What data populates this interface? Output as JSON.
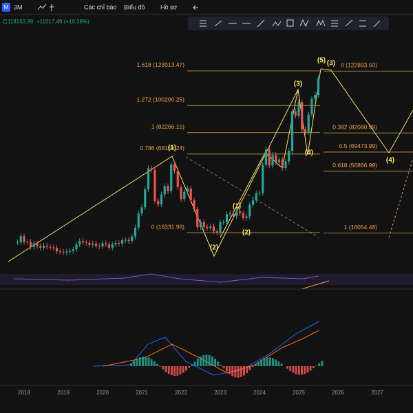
{
  "toolbar": {
    "symbol_badge": "M",
    "interval": "3M",
    "indicators": "Các chỉ báo",
    "chart_type": "Biểu đồ",
    "profile": "Hồ sơ"
  },
  "legend": {
    "prefix": "C",
    "close": "118163.99",
    "change": "+11017.49 (+10.28%)"
  },
  "chart_data": {
    "type": "candlestick",
    "ylim": [
      -11811,
      156140
    ],
    "up_color": "#26a69a",
    "down_color": "#ef5350",
    "closes": [
      10000,
      14000,
      10100,
      10300,
      7000,
      9200,
      7500,
      6400,
      7700,
      7000,
      6600,
      6300,
      4000,
      3700,
      3400,
      3800,
      4100,
      5300,
      8600,
      10800,
      10000,
      9600,
      8300,
      9200,
      7600,
      7200,
      9300,
      8600,
      6400,
      8600,
      9500,
      9100,
      11300,
      11600,
      10800,
      13800,
      19700,
      29000,
      33000,
      45000,
      58800,
      57700,
      37300,
      35000,
      41500,
      47000,
      43800,
      61300,
      57000,
      46300,
      38500,
      43200,
      45500,
      37700,
      31800,
      19900,
      23300,
      20000,
      19400,
      20500,
      17200,
      16500,
      23100,
      23100,
      28500,
      29200,
      27200,
      30500,
      29200,
      26000,
      27000,
      34600,
      37700,
      42300,
      42500,
      61100,
      71300,
      60600,
      67500,
      62700,
      64600,
      59000,
      63300,
      70200,
      96400,
      93400,
      102400,
      84400,
      82500,
      94200,
      104600,
      107100,
      118200
    ],
    "years": [
      "2018",
      "2019",
      "2020",
      "2021",
      "2022",
      "2023",
      "2024",
      "2025",
      "2026",
      "2027"
    ],
    "fib_left": [
      {
        "label": "1.618 (123013.47)",
        "value": 123013.47
      },
      {
        "label": "1.272 (100200.25)",
        "value": 100200.25
      },
      {
        "label": "1 (82266.15)",
        "value": 82266.15
      },
      {
        "label": "0.786 (68156.24)",
        "value": 68156.24
      },
      {
        "label": "0 (16331.98)",
        "value": 16331.98
      }
    ],
    "fib_right": [
      {
        "label": "0 (122893.50)",
        "value": 122893.5
      },
      {
        "label": "0.382 (82080.99)",
        "value": 82080.99
      },
      {
        "label": "0.5 (69473.99)",
        "value": 69473.99
      },
      {
        "label": "0.618 (56866.99)",
        "value": 56866.99
      },
      {
        "label": "1 (16054.48)",
        "value": 16054.48
      }
    ],
    "waves": [
      "(1)",
      "(2)",
      "(3)",
      "(4)",
      "(5)",
      "(3)",
      "(4)",
      "(1)",
      "(2)"
    ]
  }
}
